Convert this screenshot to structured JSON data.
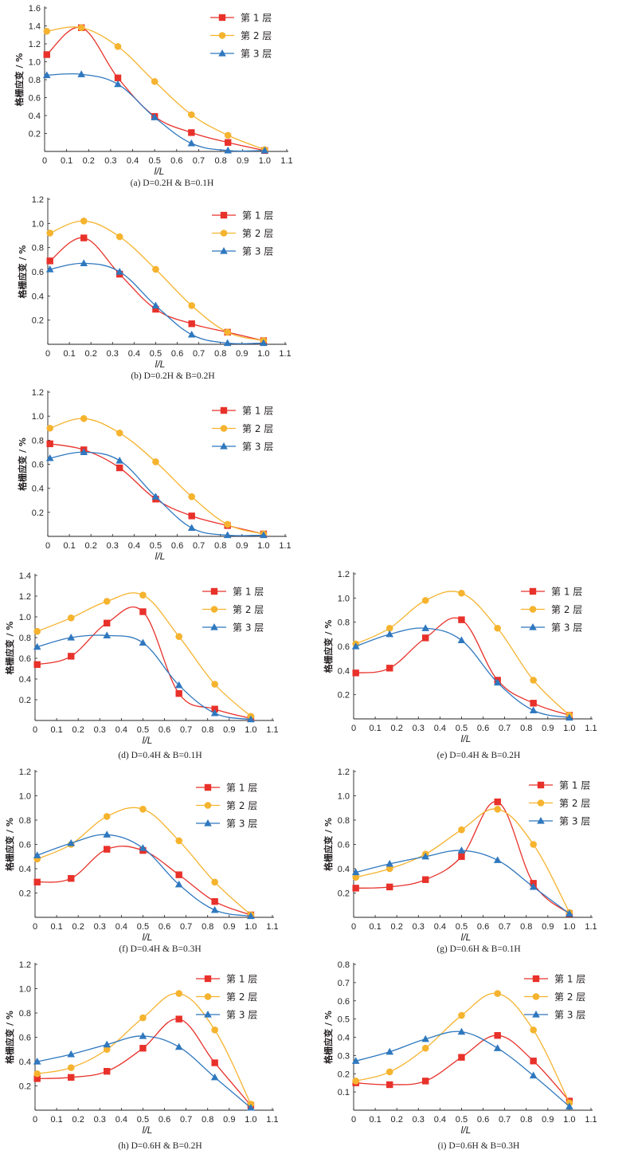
{
  "legend": [
    {
      "name": "第 1 层",
      "color": "#e8312a",
      "marker": "square"
    },
    {
      "name": "第 2 层",
      "color": "#f5b32e",
      "marker": "circle"
    },
    {
      "name": "第 3 层",
      "color": "#2f78bf",
      "marker": "triangle"
    }
  ],
  "chart_data": [
    {
      "type": "line",
      "caption": "(a)  D=0.2H & B=0.1H",
      "xlabel": "l/L",
      "ylabel": "格栅应变 / %",
      "xlim": [
        0,
        1.1
      ],
      "ylim": [
        0,
        1.6
      ],
      "xticks": [
        "0",
        "0.1",
        "0.2",
        "0.3",
        "0.4",
        "0.5",
        "0.6",
        "0.7",
        "0.8",
        "0.9",
        "1.0",
        "1.1"
      ],
      "yticks": [
        "0.2",
        "0.4",
        "0.6",
        "0.8",
        "1.0",
        "1.2",
        "1.4",
        "1.6"
      ],
      "x": [
        0.01,
        0.167,
        0.333,
        0.5,
        0.667,
        0.833,
        1.0
      ],
      "series": [
        {
          "name": "第 1 层",
          "values": [
            1.08,
            1.38,
            0.82,
            0.39,
            0.21,
            0.1,
            0.01
          ]
        },
        {
          "name": "第 2 层",
          "values": [
            1.34,
            1.38,
            1.17,
            0.78,
            0.41,
            0.18,
            0.02
          ]
        },
        {
          "name": "第 3 层",
          "values": [
            0.85,
            0.86,
            0.75,
            0.38,
            0.09,
            0.01,
            0.01
          ]
        }
      ]
    },
    {
      "type": "line",
      "caption": "(b)  D=0.2H & B=0.2H",
      "xlabel": "l/L",
      "ylabel": "格栅应变 / %",
      "xlim": [
        0,
        1.1
      ],
      "ylim": [
        0,
        1.2
      ],
      "xticks": [
        "0",
        "0.1",
        "0.2",
        "0.3",
        "0.4",
        "0.5",
        "0.6",
        "0.7",
        "0.8",
        "0.9",
        "1.0",
        "1.1"
      ],
      "yticks": [
        "0.2",
        "0.4",
        "0.6",
        "0.8",
        "1.0",
        "1.2"
      ],
      "x": [
        0.01,
        0.167,
        0.333,
        0.5,
        0.667,
        0.833,
        1.0
      ],
      "series": [
        {
          "name": "第 1 层",
          "values": [
            0.69,
            0.88,
            0.58,
            0.29,
            0.17,
            0.1,
            0.03
          ]
        },
        {
          "name": "第 2 层",
          "values": [
            0.92,
            1.02,
            0.89,
            0.62,
            0.32,
            0.1,
            0.03
          ]
        },
        {
          "name": "第 3 层",
          "values": [
            0.62,
            0.67,
            0.6,
            0.32,
            0.08,
            0.01,
            0.01
          ]
        }
      ]
    },
    {
      "type": "line",
      "caption": "",
      "xlabel": "l/L",
      "ylabel": "格栅应变 / %",
      "xlim": [
        0,
        1.1
      ],
      "ylim": [
        0,
        1.2
      ],
      "xticks": [
        "0",
        "0.1",
        "0.2",
        "0.3",
        "0.4",
        "0.5",
        "0.6",
        "0.7",
        "0.8",
        "0.9",
        "1.0",
        "1.1"
      ],
      "yticks": [
        "0.2",
        "0.4",
        "0.6",
        "0.8",
        "1.0",
        "1.2"
      ],
      "x": [
        0.01,
        0.167,
        0.333,
        0.5,
        0.667,
        0.833,
        1.0
      ],
      "series": [
        {
          "name": "第 1 层",
          "values": [
            0.77,
            0.72,
            0.57,
            0.31,
            0.17,
            0.09,
            0.02
          ]
        },
        {
          "name": "第 2 层",
          "values": [
            0.9,
            0.98,
            0.86,
            0.62,
            0.33,
            0.1,
            0.02
          ]
        },
        {
          "name": "第 3 层",
          "values": [
            0.65,
            0.7,
            0.63,
            0.33,
            0.07,
            0.01,
            0.01
          ]
        }
      ]
    },
    {
      "type": "line",
      "caption": "(d)  D=0.4H & B=0.1H",
      "xlabel": "l/L",
      "ylabel": "格栅应变 / %",
      "xlim": [
        0,
        1.1
      ],
      "ylim": [
        0,
        1.4
      ],
      "xticks": [
        "0",
        "0.1",
        "0.2",
        "0.3",
        "0.4",
        "0.5",
        "0.6",
        "0.7",
        "0.8",
        "0.9",
        "1.0",
        "1.1"
      ],
      "yticks": [
        "0.2",
        "0.4",
        "0.6",
        "0.8",
        "1.0",
        "1.2",
        "1.4"
      ],
      "x": [
        0.01,
        0.167,
        0.333,
        0.5,
        0.667,
        0.833,
        1.0
      ],
      "series": [
        {
          "name": "第 1 层",
          "values": [
            0.54,
            0.62,
            0.94,
            1.05,
            0.26,
            0.11,
            0.02
          ]
        },
        {
          "name": "第 2 层",
          "values": [
            0.86,
            0.99,
            1.15,
            1.21,
            0.81,
            0.35,
            0.04
          ]
        },
        {
          "name": "第 3 层",
          "values": [
            0.71,
            0.8,
            0.82,
            0.75,
            0.34,
            0.07,
            0.01
          ]
        }
      ]
    },
    {
      "type": "line",
      "caption": "(e)  D=0.4H & B=0.2H",
      "xlabel": "l/L",
      "ylabel": "格栅应变 / %",
      "xlim": [
        0,
        1.1
      ],
      "ylim": [
        0,
        1.2
      ],
      "xticks": [
        "0",
        "0.1",
        "0.2",
        "0.3",
        "0.4",
        "0.5",
        "0.6",
        "0.7",
        "0.8",
        "0.9",
        "1.0",
        "1.1"
      ],
      "yticks": [
        "0.2",
        "0.4",
        "0.6",
        "0.8",
        "1.0",
        "1.2"
      ],
      "x": [
        0.01,
        0.167,
        0.333,
        0.5,
        0.667,
        0.833,
        1.0
      ],
      "series": [
        {
          "name": "第 1 层",
          "values": [
            0.38,
            0.42,
            0.67,
            0.82,
            0.32,
            0.13,
            0.03
          ]
        },
        {
          "name": "第 2 层",
          "values": [
            0.62,
            0.75,
            0.98,
            1.04,
            0.75,
            0.32,
            0.03
          ]
        },
        {
          "name": "第 3 层",
          "values": [
            0.6,
            0.7,
            0.75,
            0.65,
            0.3,
            0.07,
            0.01
          ]
        }
      ]
    },
    {
      "type": "line",
      "caption": "(f)  D=0.4H & B=0.3H",
      "xlabel": "l/L",
      "ylabel": "格栅应变 / %",
      "xlim": [
        0,
        1.1
      ],
      "ylim": [
        0,
        1.2
      ],
      "xticks": [
        "0",
        "0.1",
        "0.2",
        "0.3",
        "0.4",
        "0.5",
        "0.6",
        "0.7",
        "0.8",
        "0.9",
        "1.0",
        "1.1"
      ],
      "yticks": [
        "0.2",
        "0.4",
        "0.6",
        "0.8",
        "1.0",
        "1.2"
      ],
      "x": [
        0.01,
        0.167,
        0.333,
        0.5,
        0.667,
        0.833,
        1.0
      ],
      "series": [
        {
          "name": "第 1 层",
          "values": [
            0.29,
            0.32,
            0.56,
            0.55,
            0.35,
            0.13,
            0.02
          ]
        },
        {
          "name": "第 2 层",
          "values": [
            0.48,
            0.6,
            0.83,
            0.89,
            0.63,
            0.29,
            0.02
          ]
        },
        {
          "name": "第 3 层",
          "values": [
            0.51,
            0.61,
            0.68,
            0.57,
            0.27,
            0.06,
            0.01
          ]
        }
      ]
    },
    {
      "type": "line",
      "caption": "(g)  D=0.6H & B=0.1H",
      "xlabel": "l/L",
      "ylabel": "格栅应变 / %",
      "xlim": [
        0,
        1.1
      ],
      "ylim": [
        0,
        1.2
      ],
      "xticks": [
        "0",
        "0.1",
        "0.2",
        "0.3",
        "0.4",
        "0.5",
        "0.6",
        "0.7",
        "0.8",
        "0.9",
        "1.0",
        "1.1"
      ],
      "yticks": [
        "0.2",
        "0.4",
        "0.6",
        "0.8",
        "1.0",
        "1.2"
      ],
      "x": [
        0.01,
        0.167,
        0.333,
        0.5,
        0.667,
        0.833,
        1.0
      ],
      "series": [
        {
          "name": "第 1 层",
          "values": [
            0.24,
            0.25,
            0.31,
            0.5,
            0.95,
            0.28,
            0.03
          ]
        },
        {
          "name": "第 2 层",
          "values": [
            0.33,
            0.4,
            0.52,
            0.72,
            0.89,
            0.6,
            0.04
          ]
        },
        {
          "name": "第 3 层",
          "values": [
            0.37,
            0.44,
            0.5,
            0.55,
            0.47,
            0.25,
            0.03
          ]
        }
      ]
    },
    {
      "type": "line",
      "caption": "(h)  D=0.6H & B=0.2H",
      "xlabel": "l/L",
      "ylabel": "格栅应变 / %",
      "xlim": [
        0,
        1.1
      ],
      "ylim": [
        0,
        1.2
      ],
      "xticks": [
        "0",
        "0.1",
        "0.2",
        "0.3",
        "0.4",
        "0.5",
        "0.6",
        "0.7",
        "0.8",
        "0.9",
        "1.0",
        "1.1"
      ],
      "yticks": [
        "0.2",
        "0.4",
        "0.6",
        "0.8",
        "1.0",
        "1.2"
      ],
      "x": [
        0.01,
        0.167,
        0.333,
        0.5,
        0.667,
        0.833,
        1.0
      ],
      "series": [
        {
          "name": "第 1 层",
          "values": [
            0.26,
            0.27,
            0.32,
            0.51,
            0.75,
            0.39,
            0.04
          ]
        },
        {
          "name": "第 2 层",
          "values": [
            0.3,
            0.35,
            0.5,
            0.76,
            0.96,
            0.66,
            0.05
          ]
        },
        {
          "name": "第 3 层",
          "values": [
            0.4,
            0.46,
            0.54,
            0.61,
            0.52,
            0.27,
            0.02
          ]
        }
      ]
    },
    {
      "type": "line",
      "caption": "(i)  D=0.6H & B=0.3H",
      "xlabel": "l/L",
      "ylabel": "格栅应变 / %",
      "xlim": [
        0,
        1.1
      ],
      "ylim": [
        0,
        0.8
      ],
      "xticks": [
        "0",
        "0.1",
        "0.2",
        "0.3",
        "0.4",
        "0.5",
        "0.6",
        "0.7",
        "0.8",
        "0.9",
        "1.0",
        "1.1"
      ],
      "yticks": [
        "0.1",
        "0.2",
        "0.3",
        "0.4",
        "0.5",
        "0.6",
        "0.7",
        "0.8"
      ],
      "x": [
        0.01,
        0.167,
        0.333,
        0.5,
        0.667,
        0.833,
        1.0
      ],
      "series": [
        {
          "name": "第 1 层",
          "values": [
            0.15,
            0.14,
            0.16,
            0.29,
            0.41,
            0.27,
            0.05
          ]
        },
        {
          "name": "第 2 层",
          "values": [
            0.16,
            0.21,
            0.34,
            0.52,
            0.64,
            0.44,
            0.04
          ]
        },
        {
          "name": "第 3 层",
          "values": [
            0.27,
            0.32,
            0.39,
            0.43,
            0.34,
            0.19,
            0.02
          ]
        }
      ]
    }
  ]
}
